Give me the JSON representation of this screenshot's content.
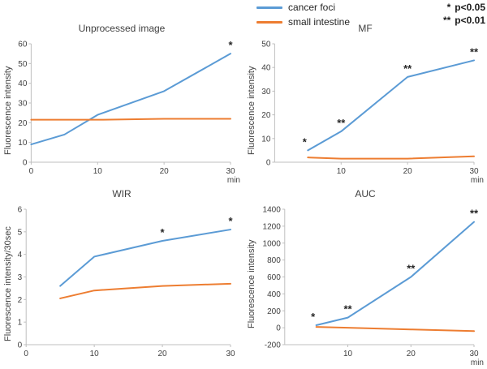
{
  "legend": {
    "items": [
      {
        "label": "cancer foci",
        "color": "#5B9BD5"
      },
      {
        "label": "small intestine",
        "color": "#ED7D31"
      }
    ],
    "significance": [
      {
        "symbol": "*",
        "label": "p<0.05"
      },
      {
        "symbol": "**",
        "label": "p<0.01"
      }
    ]
  },
  "chart_data": [
    {
      "type": "line",
      "title": "Unprocessed image",
      "ylabel": "Fluorescence intensity",
      "xlabel": "min",
      "x": [
        0,
        5,
        10,
        20,
        30
      ],
      "xlim": [
        0,
        30
      ],
      "ylim": [
        0,
        60
      ],
      "xticks": [
        0,
        10,
        20,
        30
      ],
      "yticks": [
        0,
        10,
        20,
        30,
        40,
        50,
        60
      ],
      "grid": false,
      "legend_position": "top-right-shared",
      "series": [
        {
          "name": "cancer foci",
          "color": "#5B9BD5",
          "values": [
            9,
            14,
            24,
            36,
            55
          ]
        },
        {
          "name": "small intestine",
          "color": "#ED7D31",
          "values": [
            21.5,
            21.5,
            21.5,
            22,
            22
          ]
        }
      ],
      "annotations": [
        {
          "text": "*",
          "x": 30,
          "y": 55
        }
      ]
    },
    {
      "type": "line",
      "title": "MF",
      "ylabel": "Fluorescence intensity",
      "xlabel": "min",
      "x": [
        5,
        10,
        20,
        30
      ],
      "xlim": [
        0,
        30
      ],
      "ylim": [
        0,
        50
      ],
      "xticks": [
        10,
        20,
        30
      ],
      "yticks": [
        0,
        10,
        20,
        30,
        40,
        50
      ],
      "grid": false,
      "series": [
        {
          "name": "cancer foci",
          "color": "#5B9BD5",
          "values": [
            5,
            13,
            36,
            43
          ]
        },
        {
          "name": "small intestine",
          "color": "#ED7D31",
          "values": [
            2,
            1.5,
            1.5,
            2.5
          ]
        }
      ],
      "annotations": [
        {
          "text": "*",
          "x": 5,
          "y": 5,
          "dx": -4
        },
        {
          "text": "**",
          "x": 10,
          "y": 13
        },
        {
          "text": "**",
          "x": 20,
          "y": 36
        },
        {
          "text": "**",
          "x": 30,
          "y": 43
        }
      ]
    },
    {
      "type": "line",
      "title": "WIR",
      "ylabel": "Fluorescence intensity/30sec",
      "xlabel": "",
      "x": [
        5,
        10,
        20,
        30
      ],
      "xlim": [
        0,
        30
      ],
      "ylim": [
        0,
        6
      ],
      "xticks": [
        0,
        10,
        20,
        30
      ],
      "yticks": [
        0,
        1,
        2,
        3,
        4,
        5,
        6
      ],
      "grid": false,
      "series": [
        {
          "name": "cancer foci",
          "color": "#5B9BD5",
          "values": [
            2.6,
            3.9,
            4.6,
            5.1
          ]
        },
        {
          "name": "small intestine",
          "color": "#ED7D31",
          "values": [
            2.05,
            2.4,
            2.6,
            2.7
          ]
        }
      ],
      "annotations": [
        {
          "text": "*",
          "x": 20,
          "y": 4.6
        },
        {
          "text": "*",
          "x": 30,
          "y": 5.1
        }
      ]
    },
    {
      "type": "line",
      "title": "AUC",
      "ylabel": "Fluorescence intensity",
      "xlabel": "min",
      "x": [
        5,
        10,
        20,
        30
      ],
      "xlim": [
        0,
        30
      ],
      "ylim": [
        -200,
        1400
      ],
      "xticks": [
        10,
        20,
        30
      ],
      "yticks": [
        -200,
        0,
        200,
        400,
        600,
        800,
        1000,
        1200,
        1400
      ],
      "grid": false,
      "series": [
        {
          "name": "cancer foci",
          "color": "#5B9BD5",
          "values": [
            30,
            120,
            600,
            1250
          ]
        },
        {
          "name": "small intestine",
          "color": "#ED7D31",
          "values": [
            10,
            0,
            -20,
            -40
          ]
        }
      ],
      "annotations": [
        {
          "text": "*",
          "x": 5,
          "y": 30,
          "dx": -4
        },
        {
          "text": "**",
          "x": 10,
          "y": 120
        },
        {
          "text": "**",
          "x": 20,
          "y": 600
        },
        {
          "text": "**",
          "x": 30,
          "y": 1250
        }
      ]
    }
  ]
}
